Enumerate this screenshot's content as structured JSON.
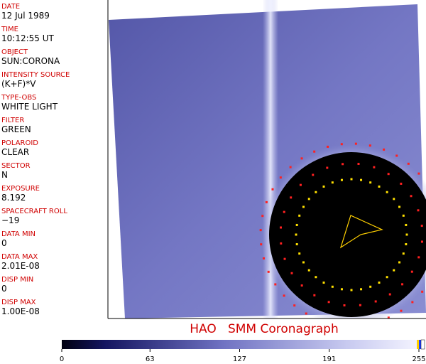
{
  "header": {
    "fields": [
      {
        "label": "DATE",
        "value": "12 Jul 1989"
      },
      {
        "label": "TIME",
        "value": "10:12:55 UT"
      },
      {
        "label": "OBJECT",
        "value": "SUN:CORONA"
      },
      {
        "label": "INTENSITY SOURCE",
        "value": "(K+F)*V"
      },
      {
        "label": "TYPE-OBS",
        "value": "WHITE LIGHT"
      },
      {
        "label": "FILTER",
        "value": "GREEN"
      },
      {
        "label": "POLAROID",
        "value": "CLEAR"
      },
      {
        "label": "SECTOR",
        "value": "N"
      },
      {
        "label": "EXPOSURE",
        "value": "8.192"
      },
      {
        "label": "SPACECRAFT ROLL",
        "value": "−19"
      },
      {
        "label": "DATA MIN",
        "value": "0"
      },
      {
        "label": "DATA MAX",
        "value": "2.01E-08"
      },
      {
        "label": "DISP MIN",
        "value": "0"
      },
      {
        "label": "DISP MAX",
        "value": "1.00E-08"
      }
    ]
  },
  "title": "HAO   SMM Coronagraph",
  "colorbar": {
    "lim": [
      0,
      255
    ],
    "ticks": [
      0,
      63,
      127,
      191,
      255
    ]
  }
}
